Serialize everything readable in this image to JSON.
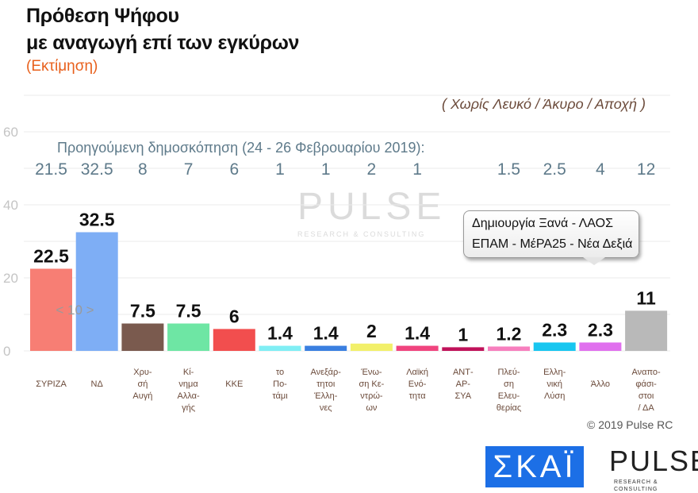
{
  "header": {
    "title_line1": "Πρόθεση Ψήφου",
    "title_line2": "με αναγωγή επί των εγκύρων",
    "subtitle": "(Εκτίμηση)",
    "note": "( Χωρίς Λευκό / Άκυρο / Αποχή )"
  },
  "chart_data": {
    "type": "bar",
    "title": "Πρόθεση Ψήφου με αναγωγή επί των εγκύρων",
    "categories": [
      "ΣΥΡΙΖΑ",
      "ΝΔ",
      "Χρυ-\nσή\nΑυγή",
      "Κί-\nνημα\nΑλλα-\nγής",
      "ΚΚΕ",
      "το\nΠο-\nτάμι",
      "Ανεξάρ-\nτητοι\nΈλλη-\nνες",
      "Ένω-\nση Κε-\nντρώ-\nων",
      "Λαϊκή\nΕνό-\nτητα",
      "ΑΝΤ-\nΑΡ-\nΣΥΑ",
      "Πλεύ-\nση\nΕλευ-\nθερίας",
      "Ελλη-\nνική\nΛύση",
      "Άλλο",
      "Αναπο-\nφάσι-\nστοι\n/ ΔΑ"
    ],
    "values": [
      22.5,
      32.5,
      7.5,
      7.5,
      6,
      1.4,
      1.4,
      2,
      1.4,
      1,
      1.2,
      2.3,
      2.3,
      11
    ],
    "value_labels": [
      "22.5",
      "32.5",
      "7.5",
      "7.5",
      "6",
      "1.4",
      "1.4",
      "2",
      "1.4",
      "1",
      "1.2",
      "2.3",
      "2.3",
      "11"
    ],
    "colors": [
      "#f77e74",
      "#7eaef5",
      "#7a5a4e",
      "#6ee6a4",
      "#f24e4e",
      "#80eef4",
      "#3a7fe0",
      "#f2f06a",
      "#f0447e",
      "#c0125a",
      "#f77fbe",
      "#18c6f0",
      "#e070ee",
      "#b9b9b9"
    ],
    "previous_label": "Προηγούμενη δημοσκόπηση (24 - 26 Φεβρουαρίου 2019):",
    "previous_values": [
      "21.5",
      "32.5",
      "8",
      "7",
      "6",
      "1",
      "1",
      "2",
      "1",
      "",
      "1.5",
      "2.5",
      "4",
      "12"
    ],
    "ylim": [
      0,
      60
    ],
    "yticks": [
      "0",
      "20",
      "40",
      "60"
    ],
    "grid": true,
    "annotation_bar": "< 10 >",
    "callout_lines": [
      "Δημιουργία Ξανά - ΛΑΟΣ",
      "ΕΠΑΜ - ΜέΡΑ25 - Νέα Δεξιά"
    ]
  },
  "footer": {
    "copyright": "© 2019 Pulse RC",
    "logo_skai": "ΣΚΑΪ",
    "logo_pulse": "PULSE",
    "logo_pulse_sub": "RESEARCH & CONSULTING"
  }
}
